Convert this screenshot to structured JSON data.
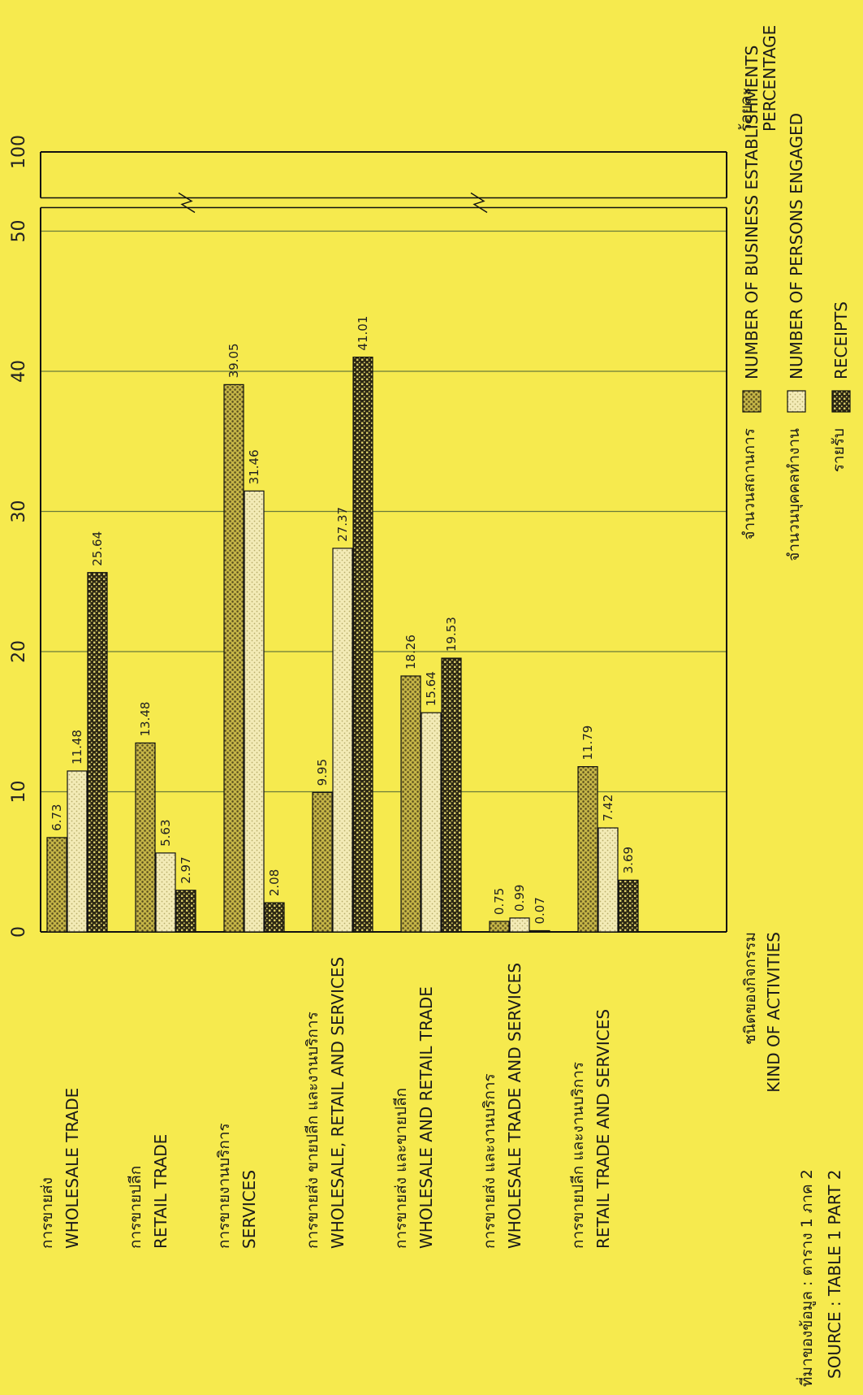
{
  "chart_data": {
    "type": "bar",
    "orientation": "horizontal",
    "value_axis": {
      "label_th": "ร้อยละ",
      "label_en": "PERCENTAGE",
      "ticks": [
        0,
        10,
        20,
        30,
        40,
        50,
        100
      ],
      "break_between": [
        50,
        100
      ],
      "grid": true
    },
    "category_axis": {
      "label_th": "ชนิดของกิจกรรม",
      "label_en": "KIND OF ACTIVITIES"
    },
    "categories": [
      {
        "th": "การขายส่ง",
        "en": "WHOLESALE TRADE"
      },
      {
        "th": "การขายปลีก",
        "en": "RETAIL TRADE"
      },
      {
        "th": "การขายงานบริการ",
        "en": "SERVICES"
      },
      {
        "th": "การขายส่ง ขายปลีก และงานบริการ",
        "en": "WHOLESALE, RETAIL AND SERVICES"
      },
      {
        "th": "การขายส่ง และขายปลีก",
        "en": "WHOLESALE AND RETAIL TRADE"
      },
      {
        "th": "การขายส่ง และงานบริการ",
        "en": "WHOLESALE TRADE AND SERVICES"
      },
      {
        "th": "การขายปลีก และงานบริการ",
        "en": "RETAIL TRADE AND SERVICES"
      }
    ],
    "series": [
      {
        "name_th": "จำนวนสถานการ",
        "name_en": "NUMBER OF BUSINESS ESTABLISHMENTS",
        "values": [
          6.73,
          13.48,
          39.05,
          9.95,
          18.26,
          0.75,
          11.79
        ],
        "labels": [
          "6.73",
          "13.48",
          "39.05",
          "9.95",
          "18.26",
          "0.75",
          "11.79"
        ],
        "color": "#9c8f2a"
      },
      {
        "name_th": "จำนวนบุคคลทำงาน",
        "name_en": "NUMBER OF PERSONS ENGAGED",
        "values": [
          11.48,
          5.63,
          31.46,
          27.37,
          15.64,
          0.99,
          7.42
        ],
        "labels": [
          "11.48",
          "5.63",
          "31.46",
          "27.37",
          "15.64",
          "0.99",
          "7.42"
        ],
        "color": "#ece1a0"
      },
      {
        "name_th": "รายรับ",
        "name_en": "RECEIPTS",
        "values": [
          25.64,
          2.97,
          2.08,
          41.01,
          19.53,
          0.07,
          3.69
        ],
        "labels": [
          "25.64",
          "2.97",
          "2.08",
          "41.01",
          "19.53",
          "0.07",
          "3.69"
        ],
        "color": "#47401f"
      }
    ],
    "legend_position": "bottom",
    "source_th": "ที่มาของข้อมูล : ตาราง 1 ภาค 2",
    "source_en": "SOURCE : TABLE 1 PART 2"
  }
}
